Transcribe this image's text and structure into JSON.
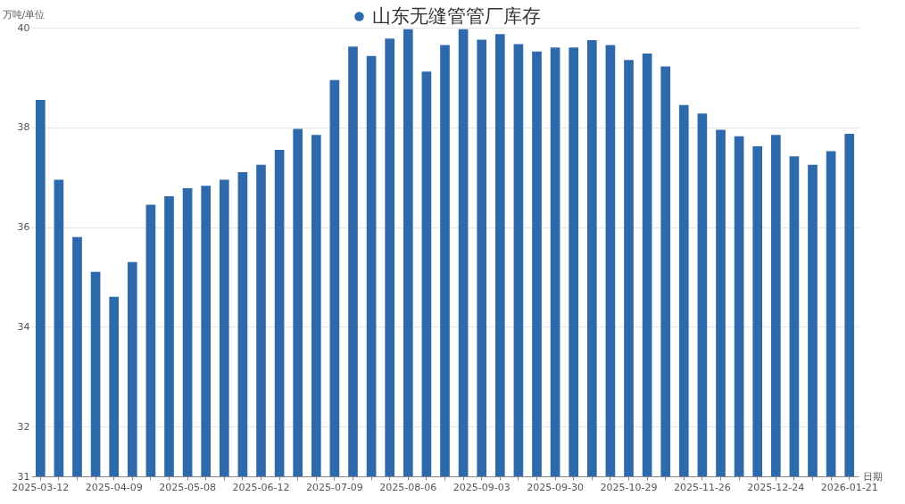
{
  "chart_data": {
    "type": "bar",
    "categories": [
      "2025-03-12",
      null,
      null,
      null,
      "2025-04-09",
      null,
      null,
      null,
      "2025-05-08",
      null,
      null,
      null,
      "2025-06-12",
      null,
      null,
      null,
      "2025-07-09",
      null,
      null,
      null,
      "2025-08-06",
      null,
      null,
      null,
      "2025-09-03",
      null,
      null,
      null,
      "2025-09-30",
      null,
      null,
      null,
      "2025-10-29",
      null,
      null,
      null,
      "2025-11-26",
      null,
      null,
      null,
      "2025-12-24",
      null,
      null,
      null,
      "2026-01-21"
    ],
    "series": [
      {
        "name": "山东无缝管管厂库存",
        "color": "#2e6aab",
        "values": [
          38.55,
          36.95,
          35.8,
          35.1,
          34.6,
          35.3,
          36.45,
          36.62,
          36.78,
          36.83,
          36.95,
          37.1,
          37.25,
          37.55,
          37.97,
          37.85,
          38.95,
          39.62,
          39.43,
          39.78,
          39.97,
          39.12,
          39.65,
          39.97,
          39.76,
          39.87,
          39.67,
          39.52,
          39.6,
          39.6,
          39.75,
          39.65,
          39.35,
          39.48,
          39.22,
          38.45,
          38.28,
          37.95,
          37.82,
          37.62,
          37.85,
          37.42,
          37.25,
          37.52,
          37.87
        ]
      }
    ],
    "ylabel": "万吨/单位",
    "xlabel": "日期",
    "ylim": [
      31,
      40
    ],
    "yticks": [
      31,
      32,
      34,
      36,
      38,
      40
    ],
    "grid": "y",
    "legend": "top"
  }
}
